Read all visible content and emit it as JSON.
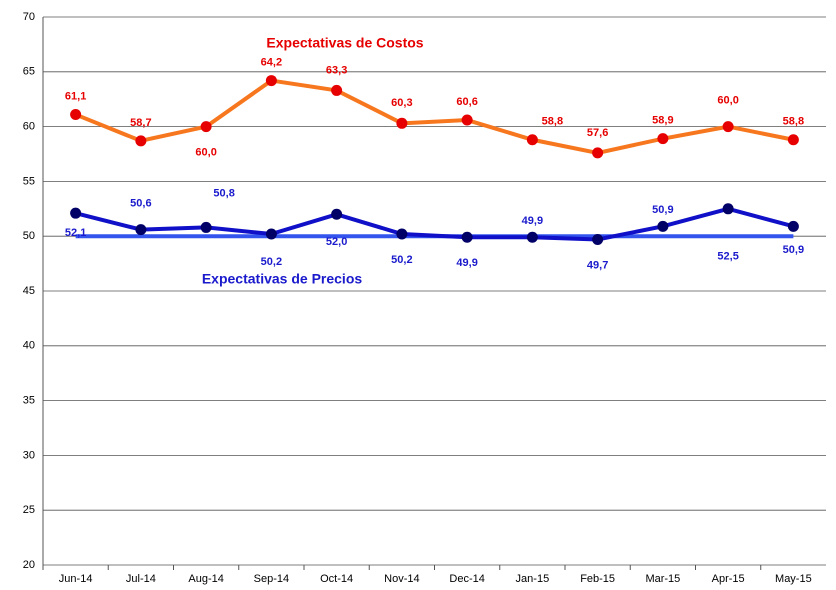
{
  "chart_data": {
    "type": "line",
    "categories": [
      "Jun-14",
      "Jul-14",
      "Aug-14",
      "Sep-14",
      "Oct-14",
      "Nov-14",
      "Dec-14",
      "Jan-15",
      "Feb-15",
      "Mar-15",
      "Apr-15",
      "May-15"
    ],
    "series": [
      {
        "name": "Expectativas de Costos",
        "color": "#f7771f",
        "marker_color": "#e60000",
        "label_color": "#e60000",
        "values": [
          61.1,
          58.7,
          60.0,
          64.2,
          63.3,
          60.3,
          60.6,
          58.8,
          57.6,
          58.9,
          60.0,
          58.8
        ],
        "value_labels": [
          "61,1",
          "58,7",
          "60,0",
          "64,2",
          "63,3",
          "60,3",
          "60,6",
          "58,8",
          "57,6",
          "58,9",
          "60,0",
          "58,8"
        ]
      },
      {
        "name": "Expectativas de Precios",
        "color": "#1010c8",
        "marker_color": "#000066",
        "label_color": "#1a1acc",
        "values": [
          52.1,
          50.6,
          50.8,
          50.2,
          52.0,
          50.2,
          49.9,
          49.9,
          49.7,
          50.9,
          52.5,
          50.9
        ],
        "value_labels": [
          "52,1",
          "50,6",
          "50,8",
          "50,2",
          "52,0",
          "50,2",
          "49,9",
          "49,9",
          "49,7",
          "50,9",
          "52,5",
          "50,9"
        ]
      }
    ],
    "reference_line": {
      "value": 50,
      "color": "#3355ee"
    },
    "ylim": [
      20,
      70
    ],
    "yticks": [
      20,
      25,
      30,
      35,
      40,
      45,
      50,
      55,
      60,
      65,
      70
    ],
    "grid": true
  }
}
